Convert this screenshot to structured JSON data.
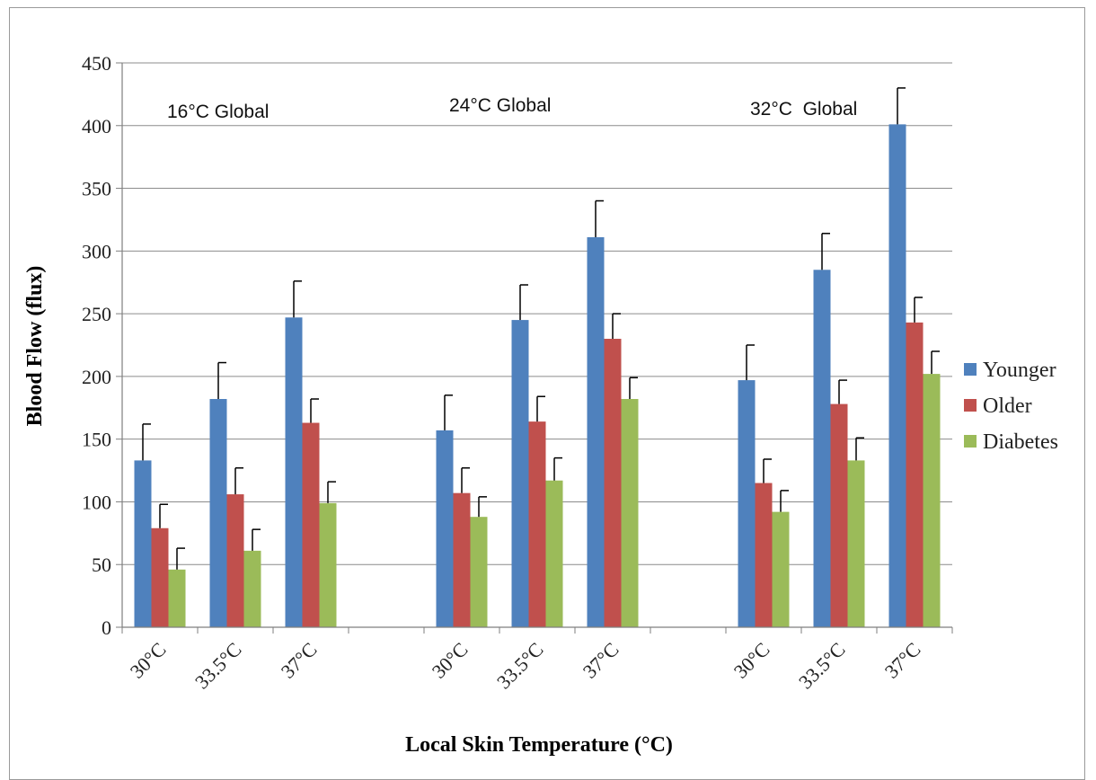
{
  "chart_data": {
    "type": "bar",
    "xlabel": "Local Skin Temperature (°C)",
    "ylabel": "Blood Flow (flux)",
    "ylim": [
      0,
      450
    ],
    "yticks": [
      0,
      50,
      100,
      150,
      200,
      250,
      300,
      350,
      400,
      450
    ],
    "grid": true,
    "legend_position": "right",
    "groups": [
      "16°C Global",
      "24°C Global",
      "32°C  Global"
    ],
    "categories": [
      "30°C",
      "33.5°C",
      "37°C",
      "30°C",
      "33.5°C",
      "37°C",
      "30°C",
      "33.5°C",
      "37°C"
    ],
    "series": [
      {
        "name": "Younger",
        "color": "#4f81bd",
        "values": [
          133,
          182,
          247,
          157,
          245,
          311,
          197,
          285,
          401
        ],
        "errors": [
          29,
          29,
          29,
          28,
          28,
          29,
          28,
          29,
          29
        ]
      },
      {
        "name": "Older",
        "color": "#c0504d",
        "values": [
          79,
          106,
          163,
          107,
          164,
          230,
          115,
          178,
          243
        ],
        "errors": [
          19,
          21,
          19,
          20,
          20,
          20,
          19,
          19,
          20
        ]
      },
      {
        "name": "Diabetes",
        "color": "#9bbb59",
        "values": [
          46,
          61,
          99,
          88,
          117,
          182,
          92,
          133,
          202
        ],
        "errors": [
          17,
          17,
          17,
          16,
          18,
          17,
          17,
          18,
          18
        ]
      }
    ]
  }
}
